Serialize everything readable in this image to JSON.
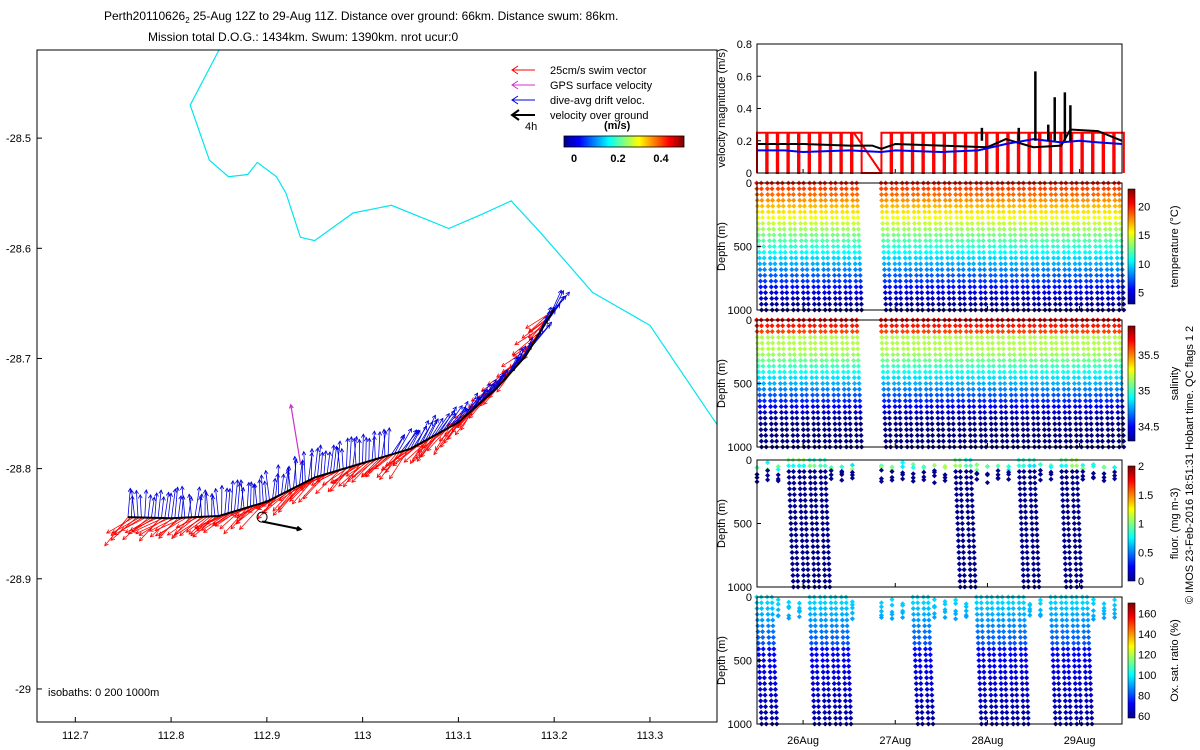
{
  "title": {
    "line1_main": "Perth20110626",
    "line1_sub": "2",
    "line1_rest": " 25-Aug 12Z to 29-Aug 11Z. Distance over ground: 66km. Distance swum: 86km.",
    "line2": "Mission total D.O.G.: 1434km. Swum: 1390km. nrot ucur:0"
  },
  "side_note": "© IMOS 23-Feb-2016 18:51:31 Hobart time. QC flags 1  2",
  "colors": {
    "swim": "#ff0000",
    "gps": "#cc33cc",
    "drift": "#0000dd",
    "ground": "#000000",
    "isobath": "#00e5ee"
  },
  "chart_data": [
    {
      "type": "map",
      "id": "track-map",
      "xlabel": "",
      "ylabel": "",
      "xlim": [
        112.66,
        113.37
      ],
      "ylim": [
        -29.03,
        -28.42
      ],
      "xticks": [
        "112.7",
        "112.8",
        "112.9",
        "113",
        "113.1",
        "113.2",
        "113.3"
      ],
      "yticks": [
        "-28.5",
        "-28.6",
        "-28.7",
        "-28.8",
        "-28.9",
        "-29"
      ],
      "legend": [
        "25cm/s swim vector",
        "GPS surface velocity",
        "dive-avg drift veloc.",
        "velocity over ground"
      ],
      "legend_scale": "4h",
      "colorbar": {
        "title": "(m/s)",
        "ticks": [
          "0",
          "0.2",
          "0.4"
        ],
        "range": [
          0,
          0.5
        ]
      },
      "isobath_note": "isobaths: 0   200   1000m",
      "isobath_line": [
        [
          112.85,
          -28.42
        ],
        [
          112.82,
          -28.47
        ],
        [
          112.84,
          -28.52
        ],
        [
          112.86,
          -28.535
        ],
        [
          112.88,
          -28.533
        ],
        [
          112.89,
          -28.522
        ],
        [
          112.91,
          -28.535
        ],
        [
          112.92,
          -28.55
        ],
        [
          112.935,
          -28.59
        ],
        [
          112.95,
          -28.593
        ],
        [
          112.99,
          -28.568
        ],
        [
          113.03,
          -28.561
        ],
        [
          113.09,
          -28.582
        ],
        [
          113.125,
          -28.569
        ],
        [
          113.155,
          -28.557
        ],
        [
          113.185,
          -28.585
        ],
        [
          113.24,
          -28.64
        ],
        [
          113.3,
          -28.67
        ],
        [
          113.37,
          -28.76
        ]
      ],
      "track": [
        [
          112.755,
          -28.844
        ],
        [
          112.8,
          -28.845
        ],
        [
          112.85,
          -28.843
        ],
        [
          112.9,
          -28.83
        ],
        [
          112.95,
          -28.808
        ],
        [
          113.0,
          -28.795
        ],
        [
          113.05,
          -28.782
        ],
        [
          113.1,
          -28.758
        ],
        [
          113.14,
          -28.727
        ],
        [
          113.17,
          -28.698
        ],
        [
          113.2,
          -28.655
        ]
      ],
      "gps_arrow": [
        [
          112.935,
          -28.795
        ],
        [
          112.925,
          -28.742
        ]
      ],
      "ground_arrow": [
        [
          112.895,
          -28.848
        ],
        [
          112.935,
          -28.855
        ]
      ]
    },
    {
      "type": "line",
      "id": "velocity-panel",
      "ylabel": "velocity magnitude (m/s)",
      "ylim": [
        0,
        0.8
      ],
      "yticks": [
        "0",
        "0.2",
        "0.4",
        "0.6",
        "0.8"
      ],
      "xlim": [
        25.5,
        29.46
      ],
      "series": [
        {
          "color": "#000000",
          "x": [
            25.5,
            26.0,
            26.5,
            26.75,
            26.85,
            27.0,
            27.5,
            28.0,
            28.2,
            28.5,
            28.8,
            28.9,
            29.2,
            29.46
          ],
          "y": [
            0.18,
            0.18,
            0.17,
            0.17,
            0.15,
            0.18,
            0.17,
            0.16,
            0.21,
            0.16,
            0.17,
            0.27,
            0.26,
            0.2
          ]
        },
        {
          "color": "#0000ee",
          "x": [
            25.5,
            25.8,
            26.0,
            26.5,
            26.85,
            27.0,
            27.5,
            27.9,
            28.2,
            28.5,
            28.8,
            29.0,
            29.2,
            29.46
          ],
          "y": [
            0.14,
            0.14,
            0.13,
            0.14,
            0.13,
            0.14,
            0.13,
            0.14,
            0.18,
            0.21,
            0.19,
            0.2,
            0.19,
            0.18
          ]
        }
      ],
      "spikes": [
        [
          28.34,
          0.28
        ],
        [
          28.52,
          0.63
        ],
        [
          28.66,
          0.3
        ],
        [
          28.73,
          0.47
        ],
        [
          28.84,
          0.5
        ],
        [
          28.9,
          0.42
        ],
        [
          27.94,
          0.28
        ]
      ],
      "dive_cycle_value": 0.25
    },
    {
      "type": "scatter",
      "id": "temperature-panel",
      "ylabel": "Depth (m)",
      "yticks": [
        "0",
        "500",
        "1000"
      ],
      "ylim": [
        0,
        1000
      ],
      "colorbar": {
        "label": "temperature (°C)",
        "ticks": [
          "5",
          "10",
          "15",
          "20"
        ],
        "range": [
          3,
          23
        ]
      }
    },
    {
      "type": "scatter",
      "id": "salinity-panel",
      "ylabel": "Depth (m)",
      "yticks": [
        "0",
        "500",
        "1000"
      ],
      "ylim": [
        0,
        1000
      ],
      "colorbar": {
        "label": "salinity",
        "ticks": [
          "34.5",
          "35",
          "35.5"
        ],
        "range": [
          34.3,
          35.9
        ]
      }
    },
    {
      "type": "scatter",
      "id": "fluor-panel",
      "ylabel": "Depth (m)",
      "yticks": [
        "0",
        "500",
        "1000"
      ],
      "ylim": [
        0,
        1000
      ],
      "colorbar": {
        "label": "fluor. (mg m-3)",
        "ticks": [
          "0",
          "0.5",
          "1",
          "1.5",
          "2"
        ],
        "range": [
          0,
          2
        ]
      }
    },
    {
      "type": "scatter",
      "id": "oxygen-panel",
      "ylabel": "Depth (m)",
      "yticks": [
        "0",
        "500",
        "1000"
      ],
      "ylim": [
        0,
        1000
      ],
      "xticks": [
        "26Aug",
        "27Aug",
        "28Aug",
        "29Aug"
      ],
      "colorbar": {
        "label": "Ox. sat. ratio (%)",
        "ticks": [
          "60",
          "80",
          "100",
          "120",
          "140",
          "160"
        ],
        "range": [
          58,
          170
        ]
      }
    }
  ]
}
